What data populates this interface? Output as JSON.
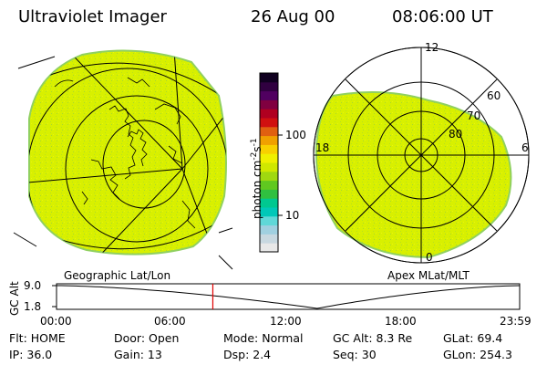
{
  "header": {
    "instrument": "Ultraviolet Imager",
    "date": "26 Aug 00",
    "time": "08:06:00 UT"
  },
  "colorbar": {
    "unit_label": "photon cm",
    "unit_exp": "-2",
    "unit_s": "s",
    "unit_sexp": "-1",
    "tick_high": "100",
    "tick_low": "10",
    "colors": [
      "#e8e8e8",
      "#c8d8e0",
      "#a0d0e0",
      "#60d8d8",
      "#00c8b8",
      "#00c890",
      "#30c040",
      "#60c820",
      "#a0d810",
      "#d0e800",
      "#f0f000",
      "#f8d000",
      "#f0a000",
      "#e06010",
      "#d01010",
      "#b00020",
      "#800040",
      "#500060",
      "#300040",
      "#100020"
    ]
  },
  "left_map": {
    "caption": "Geographic Lat/Lon",
    "fill": "#d8f000",
    "edge": "#88d040"
  },
  "right_map": {
    "caption": "Apex MLat/MLT",
    "lat_labels": [
      "80",
      "70",
      "60"
    ],
    "mlt_labels": {
      "top": "12",
      "left": "18",
      "right": "6",
      "bottom": "0"
    }
  },
  "timeline": {
    "axis_label": "GC Alt",
    "y_high": "9.0",
    "y_low": "1.8",
    "ticks": [
      "00:00",
      "06:00",
      "12:00",
      "18:00",
      "23:59"
    ],
    "marker_hour": 8.1,
    "marker_color": "#e00000"
  },
  "info": {
    "row1": {
      "flt": "Flt: HOME",
      "door": "Door: Open",
      "mode": "Mode: Normal",
      "gcalt": "GC Alt: 8.3 Re",
      "glat": "GLat:  69.4"
    },
    "row2": {
      "ip": "IP: 36.0",
      "gain": "Gain: 13",
      "dsp": "Dsp:     2.4",
      "seq": "Seq: 30",
      "glon": "GLon: 254.3"
    }
  }
}
